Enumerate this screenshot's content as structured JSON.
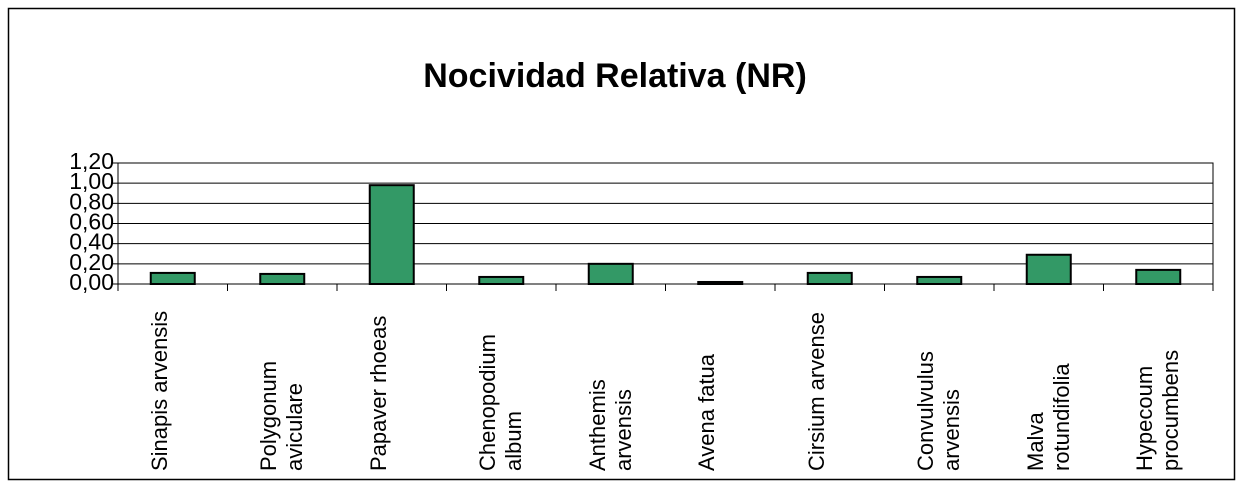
{
  "chart_data": {
    "type": "bar",
    "title": "Nocividad Relativa (NR)",
    "categories": [
      "Sinapis arvensis",
      "Polygonum aviculare",
      "Papaver rhoeas",
      "Chenopodium album",
      "Anthemis arvensis",
      "Avena fatua",
      "Cirsium arvense",
      "Convulvulus arvensis",
      "Malva rotundifolia",
      "Hypecoum procumbens"
    ],
    "values": [
      0.11,
      0.1,
      0.98,
      0.07,
      0.2,
      0.02,
      0.11,
      0.07,
      0.29,
      0.14
    ],
    "color": "#339966",
    "ylim": [
      0,
      1.2
    ],
    "yticks": [
      {
        "value": 0,
        "label": "0,00"
      },
      {
        "value": 0.2,
        "label": "0,20"
      },
      {
        "value": 0.4,
        "label": "0,40"
      },
      {
        "value": 0.6,
        "label": "0,60"
      },
      {
        "value": 0.8,
        "label": "0,80"
      },
      {
        "value": 1.0,
        "label": "1,00"
      },
      {
        "value": 1.2,
        "label": "1,20"
      }
    ],
    "grid": true
  }
}
